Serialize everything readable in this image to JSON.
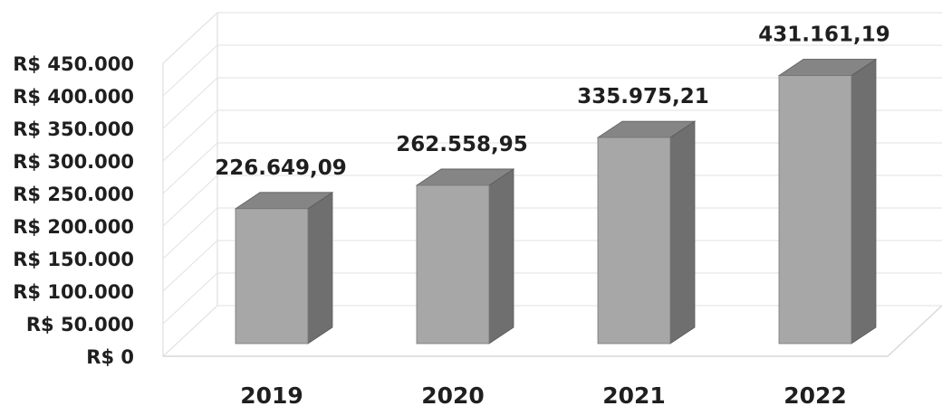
{
  "chart_data": {
    "type": "bar",
    "style": "3d-column",
    "categories": [
      "2019",
      "2020",
      "2021",
      "2022"
    ],
    "values": [
      226649.09,
      262558.95,
      335975.21,
      431161.19
    ],
    "data_labels": [
      "226.649,09",
      "262.558,95",
      "335.975,21",
      "431.161,19"
    ],
    "title": "",
    "xlabel": "",
    "ylabel": "",
    "ylim": [
      0,
      450000
    ],
    "yticks": [
      0,
      50000,
      100000,
      150000,
      200000,
      250000,
      300000,
      350000,
      400000,
      450000
    ],
    "ytick_labels": [
      "R$ 0",
      "R$ 50.000",
      "R$ 100.000",
      "R$ 150.000",
      "R$ 200.000",
      "R$ 250.000",
      "R$ 300.000",
      "R$ 350.000",
      "R$ 400.000",
      "R$ 450.000"
    ],
    "grid": true,
    "legend": "none",
    "colors": {
      "bar_front": "#a7a7a7",
      "bar_side": "#6f6f6f",
      "bar_top": "#858585",
      "grid": "#e2e2e2",
      "wall": "#d9d9d9"
    }
  }
}
